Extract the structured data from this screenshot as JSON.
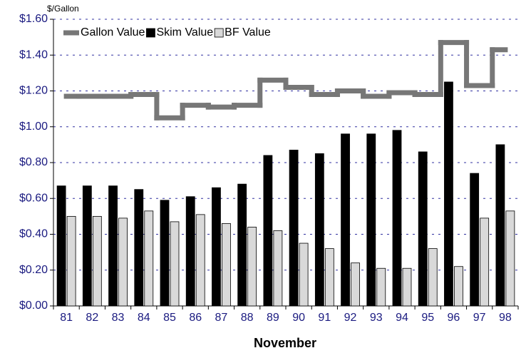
{
  "chart_data": {
    "type": "bar",
    "y_axis_label": "$/Gallon",
    "x_axis_label": "November",
    "categories": [
      "81",
      "82",
      "83",
      "84",
      "85",
      "86",
      "87",
      "88",
      "89",
      "90",
      "91",
      "92",
      "93",
      "94",
      "95",
      "96",
      "97",
      "98"
    ],
    "series": [
      {
        "name": "Gallon Value",
        "type": "step",
        "color": "#777777",
        "values": [
          1.17,
          1.17,
          1.17,
          1.18,
          1.05,
          1.12,
          1.11,
          1.12,
          1.26,
          1.22,
          1.18,
          1.2,
          1.17,
          1.19,
          1.18,
          1.47,
          1.23,
          1.43
        ]
      },
      {
        "name": "Skim Value",
        "type": "bar",
        "color": "#000000",
        "values": [
          0.67,
          0.67,
          0.67,
          0.65,
          0.59,
          0.61,
          0.66,
          0.68,
          0.84,
          0.87,
          0.85,
          0.96,
          0.96,
          0.98,
          0.86,
          1.25,
          0.74,
          0.9
        ]
      },
      {
        "name": "BF Value",
        "type": "bar",
        "color": "#d9d9d9",
        "values": [
          0.5,
          0.5,
          0.49,
          0.53,
          0.47,
          0.51,
          0.46,
          0.44,
          0.42,
          0.35,
          0.32,
          0.24,
          0.21,
          0.21,
          0.32,
          0.22,
          0.49,
          0.53
        ]
      }
    ],
    "ylim": [
      0,
      1.6
    ],
    "yticks": [
      {
        "value": 0,
        "label": "$0.00"
      },
      {
        "value": 0.2,
        "label": "$0.20"
      },
      {
        "value": 0.4,
        "label": "$0.40"
      },
      {
        "value": 0.6,
        "label": "$0.60"
      },
      {
        "value": 0.8,
        "label": "$0.80"
      },
      {
        "value": 1.0,
        "label": "$1.00"
      },
      {
        "value": 1.2,
        "label": "$1.20"
      },
      {
        "value": 1.4,
        "label": "$1.40"
      },
      {
        "value": 1.6,
        "label": "$1.60"
      }
    ],
    "grid": true,
    "legend": "top-left"
  }
}
